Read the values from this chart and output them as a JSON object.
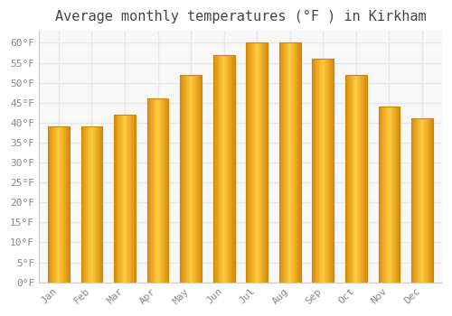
{
  "title": "Average monthly temperatures (°F ) in Kirkham",
  "months": [
    "Jan",
    "Feb",
    "Mar",
    "Apr",
    "May",
    "Jun",
    "Jul",
    "Aug",
    "Sep",
    "Oct",
    "Nov",
    "Dec"
  ],
  "values": [
    39,
    39,
    42,
    46,
    52,
    57,
    60,
    60,
    56,
    52,
    44,
    41
  ],
  "bar_color_light": "#FFD060",
  "bar_color_mid": "#FFA800",
  "bar_color_dark": "#E08000",
  "bar_edge_color": "#CC8800",
  "ylim": [
    0,
    63
  ],
  "yticks": [
    0,
    5,
    10,
    15,
    20,
    25,
    30,
    35,
    40,
    45,
    50,
    55,
    60
  ],
  "background_color": "#FFFFFF",
  "plot_bg_color": "#F8F8F8",
  "grid_color": "#E8E8E8",
  "title_fontsize": 11,
  "tick_fontsize": 8,
  "tick_label_color": "#888888",
  "title_color": "#444444",
  "bar_width": 0.65
}
